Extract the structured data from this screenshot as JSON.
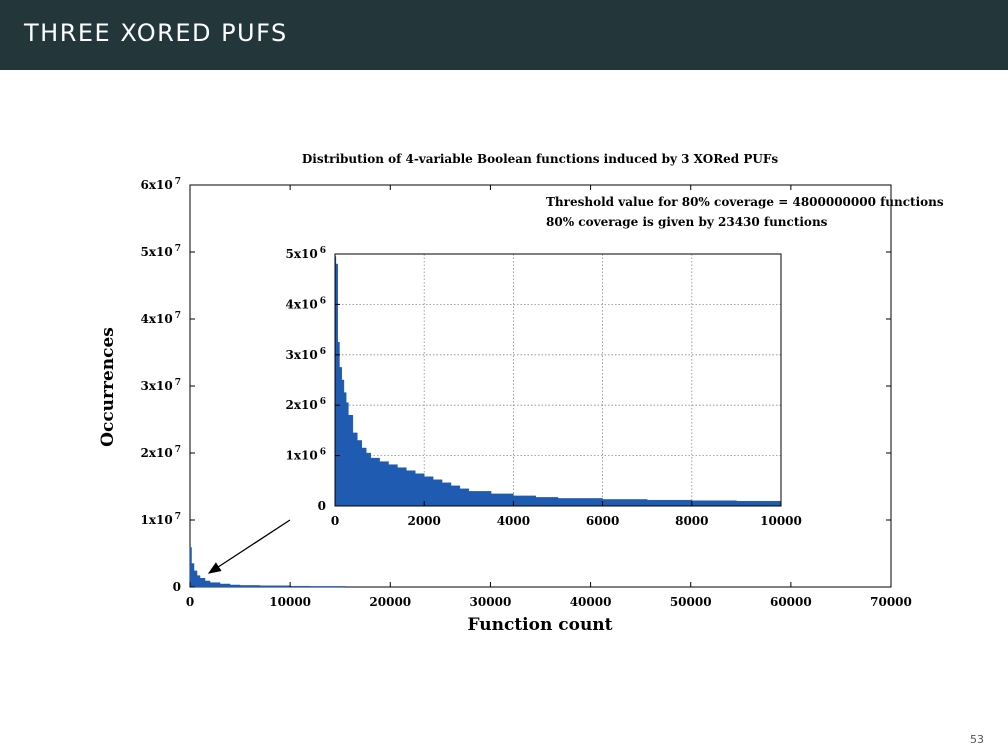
{
  "slide": {
    "title": "THREE XORED PUFS",
    "page_number": "53"
  },
  "colors": {
    "header_bg": "#23373b",
    "bar_fill": "#1f5bb0",
    "grid": "#888888"
  },
  "chart_data": [
    {
      "type": "area",
      "title": "Distribution of 4-variable Boolean functions induced by 3 XORed PUFs",
      "xlabel": "Function count",
      "ylabel": "Occurrences",
      "xlim": [
        0,
        70000
      ],
      "ylim": [
        0,
        60000000
      ],
      "x_ticks": [
        "0",
        "10000",
        "20000",
        "30000",
        "40000",
        "50000",
        "60000",
        "70000"
      ],
      "y_ticks": [
        {
          "base": "0",
          "exp": ""
        },
        {
          "base": "1x10",
          "exp": "7"
        },
        {
          "base": "2x10",
          "exp": "7"
        },
        {
          "base": "3x10",
          "exp": "7"
        },
        {
          "base": "4x10",
          "exp": "7"
        },
        {
          "base": "5x10",
          "exp": "7"
        },
        {
          "base": "6x10",
          "exp": "7"
        }
      ],
      "grid": false,
      "annotations": [
        "Threshold value for 80% coverage = 4800000000 functions",
        "80% coverage is given by 23430 functions"
      ],
      "series": [
        {
          "x": [
            0,
            150,
            400,
            700,
            1000,
            1500,
            2000,
            3000,
            4000,
            5000,
            7000,
            10000,
            12000,
            15500
          ],
          "values": [
            5900000,
            3500000,
            2400000,
            1700000,
            1300000,
            900000,
            650000,
            450000,
            300000,
            230000,
            180000,
            120000,
            90000,
            0
          ]
        }
      ]
    },
    {
      "type": "area",
      "title": "",
      "xlabel": "",
      "ylabel": "",
      "xlim": [
        0,
        10000
      ],
      "ylim": [
        0,
        5000000
      ],
      "x_ticks": [
        "0",
        "2000",
        "4000",
        "6000",
        "8000",
        "10000"
      ],
      "y_ticks": [
        {
          "base": "0",
          "exp": ""
        },
        {
          "base": "1x10",
          "exp": "6"
        },
        {
          "base": "2x10",
          "exp": "6"
        },
        {
          "base": "3x10",
          "exp": "6"
        },
        {
          "base": "4x10",
          "exp": "6"
        },
        {
          "base": "5x10",
          "exp": "6"
        }
      ],
      "grid": true,
      "series": [
        {
          "x": [
            0,
            20,
            60,
            100,
            150,
            200,
            250,
            300,
            400,
            500,
            600,
            700,
            800,
            1000,
            1200,
            1400,
            1600,
            1800,
            2000,
            2200,
            2400,
            2600,
            2800,
            3000,
            3500,
            4000,
            4500,
            5000,
            6000,
            7000,
            8000,
            9000,
            10000
          ],
          "values": [
            4950000,
            4800000,
            3250000,
            2750000,
            2500000,
            2250000,
            2050000,
            1800000,
            1450000,
            1300000,
            1150000,
            1050000,
            950000,
            880000,
            820000,
            760000,
            700000,
            640000,
            580000,
            520000,
            460000,
            400000,
            340000,
            290000,
            240000,
            200000,
            170000,
            150000,
            130000,
            115000,
            105000,
            95000,
            90000
          ]
        }
      ]
    }
  ]
}
